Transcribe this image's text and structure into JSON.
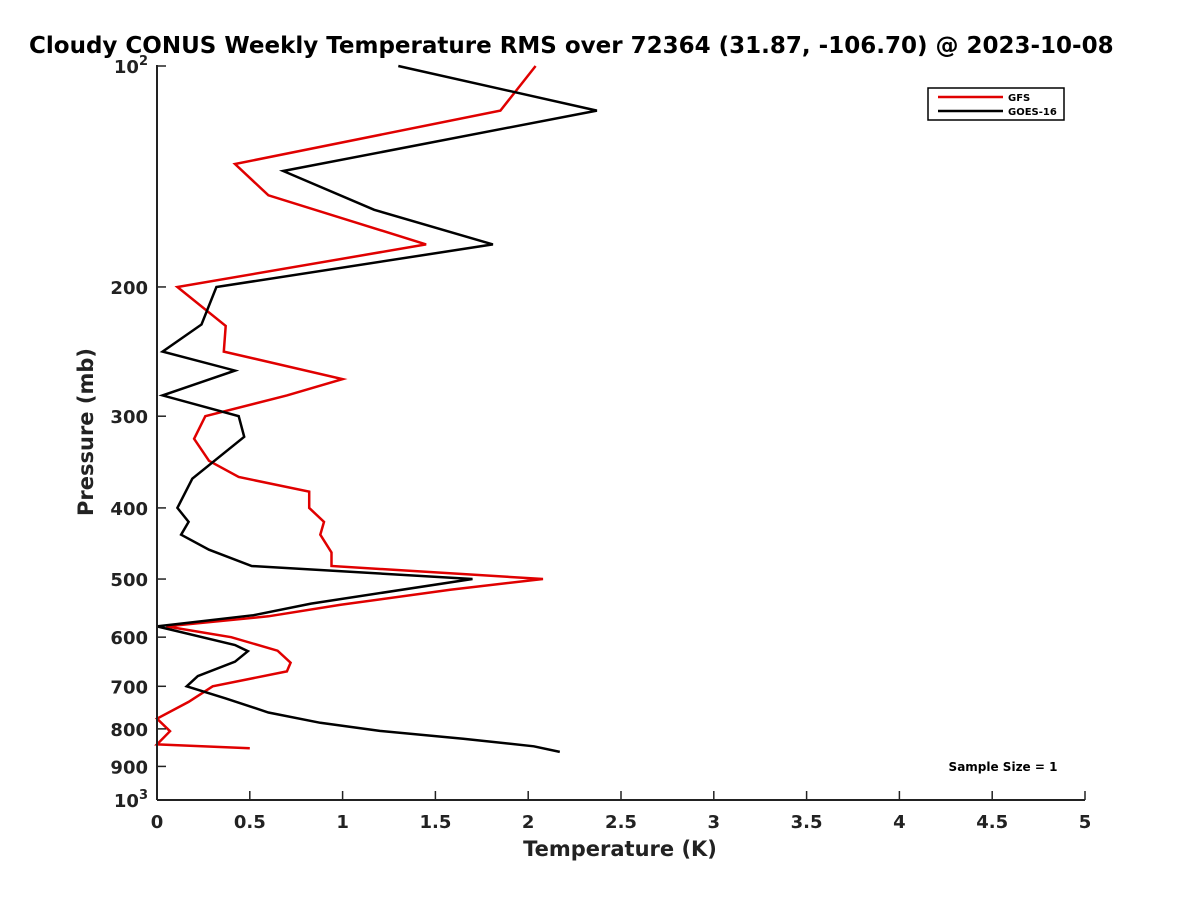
{
  "chart_data": {
    "type": "line",
    "title": "Cloudy CONUS Weekly Temperature RMS over 72364 (31.87, -106.70) @ 2023-10-08",
    "xlabel": "Temperature (K)",
    "ylabel": "Pressure (mb)",
    "xlim": [
      0,
      5
    ],
    "ylim": [
      100,
      1000
    ],
    "yscale": "log",
    "yreversed": true,
    "grid": false,
    "legend_position": "top-right",
    "x_ticks": [
      0,
      0.5,
      1,
      1.5,
      2,
      2.5,
      3,
      3.5,
      4,
      4.5,
      5
    ],
    "x_tick_labels": [
      "0",
      "0.5",
      "1",
      "1.5",
      "2",
      "2.5",
      "3",
      "3.5",
      "4",
      "4.5",
      "5"
    ],
    "y_ticks": [
      {
        "value": 100,
        "base": "10",
        "exp": "2"
      },
      {
        "value": 200,
        "label": "200"
      },
      {
        "value": 300,
        "label": "300"
      },
      {
        "value": 400,
        "label": "400"
      },
      {
        "value": 500,
        "label": "500"
      },
      {
        "value": 600,
        "label": "600"
      },
      {
        "value": 700,
        "label": "700"
      },
      {
        "value": 800,
        "label": "800"
      },
      {
        "value": 900,
        "label": "900"
      },
      {
        "value": 1000,
        "base": "10",
        "exp": "3"
      }
    ],
    "annotation": "Sample Size = 1",
    "series": [
      {
        "name": "GFS",
        "color": "#e00000",
        "points": [
          [
            2.04,
            100
          ],
          [
            1.85,
            115
          ],
          [
            0.42,
            136
          ],
          [
            0.6,
            150
          ],
          [
            1.45,
            175
          ],
          [
            0.11,
            200
          ],
          [
            0.37,
            226
          ],
          [
            0.36,
            245
          ],
          [
            1.0,
            267
          ],
          [
            0.7,
            281
          ],
          [
            0.26,
            300
          ],
          [
            0.2,
            322
          ],
          [
            0.28,
            345
          ],
          [
            0.44,
            363
          ],
          [
            0.82,
            380
          ],
          [
            0.82,
            400
          ],
          [
            0.9,
            418
          ],
          [
            0.88,
            435
          ],
          [
            0.94,
            460
          ],
          [
            0.94,
            480
          ],
          [
            2.08,
            500
          ],
          [
            1.58,
            517
          ],
          [
            0.99,
            542
          ],
          [
            0.6,
            562
          ],
          [
            0.05,
            580
          ],
          [
            0.4,
            600
          ],
          [
            0.65,
            626
          ],
          [
            0.72,
            650
          ],
          [
            0.7,
            668
          ],
          [
            0.3,
            700
          ],
          [
            0.17,
            735
          ],
          [
            0.0,
            775
          ],
          [
            0.07,
            806
          ],
          [
            0.0,
            840
          ],
          [
            0.5,
            850
          ]
        ]
      },
      {
        "name": "GOES-16",
        "color": "#000000",
        "points": [
          [
            1.3,
            100
          ],
          [
            2.37,
            115
          ],
          [
            0.68,
            139
          ],
          [
            1.17,
            157
          ],
          [
            1.81,
            175
          ],
          [
            0.32,
            200
          ],
          [
            0.24,
            225
          ],
          [
            0.03,
            245
          ],
          [
            0.42,
            260
          ],
          [
            0.03,
            281
          ],
          [
            0.44,
            300
          ],
          [
            0.47,
            320
          ],
          [
            0.19,
            365
          ],
          [
            0.11,
            400
          ],
          [
            0.17,
            418
          ],
          [
            0.13,
            435
          ],
          [
            0.28,
            456
          ],
          [
            0.51,
            480
          ],
          [
            1.7,
            500
          ],
          [
            0.83,
            540
          ],
          [
            0.52,
            560
          ],
          [
            0.0,
            580
          ],
          [
            0.42,
            615
          ],
          [
            0.49,
            627
          ],
          [
            0.42,
            648
          ],
          [
            0.22,
            678
          ],
          [
            0.16,
            700
          ],
          [
            0.37,
            727
          ],
          [
            0.6,
            760
          ],
          [
            0.88,
            785
          ],
          [
            1.2,
            805
          ],
          [
            1.65,
            825
          ],
          [
            2.03,
            845
          ],
          [
            2.17,
            860
          ]
        ]
      }
    ]
  }
}
